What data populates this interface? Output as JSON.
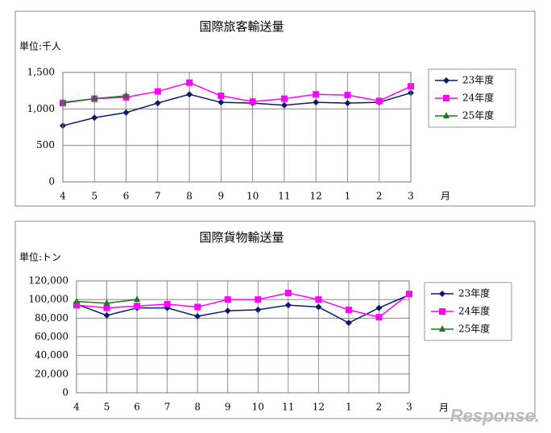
{
  "chart_data": [
    {
      "type": "line",
      "title": "国際旅客輸送量",
      "unit_label": "単位:千人",
      "x_unit": "月",
      "categories": [
        "4",
        "5",
        "6",
        "7",
        "8",
        "9",
        "10",
        "11",
        "12",
        "1",
        "2",
        "3"
      ],
      "ylim": [
        0,
        1500
      ],
      "yticks": [
        0,
        500,
        {
          "value": 1000,
          "label": "1,000"
        },
        {
          "value": 1500,
          "label": "1,500"
        }
      ],
      "grid": true,
      "legend": "right",
      "series": [
        {
          "name": "23年度",
          "color": "#0a1a6e",
          "marker": "diamond",
          "values": [
            770,
            880,
            950,
            1080,
            1200,
            1090,
            1080,
            1050,
            1090,
            1080,
            1090,
            1220
          ]
        },
        {
          "name": "24年度",
          "color": "#ff00ff",
          "marker": "square",
          "values": [
            1080,
            1140,
            1160,
            1240,
            1360,
            1180,
            1100,
            1140,
            1200,
            1190,
            1110,
            1310
          ]
        },
        {
          "name": "25年度",
          "color": "#1a7a1a",
          "marker": "triangle",
          "values": [
            1090,
            1140,
            1180,
            null,
            null,
            null,
            null,
            null,
            null,
            null,
            null,
            null
          ]
        }
      ]
    },
    {
      "type": "line",
      "title": "国際貨物輸送量",
      "unit_label": "単位:トン",
      "x_unit": "月",
      "categories": [
        "4",
        "5",
        "6",
        "7",
        "8",
        "9",
        "10",
        "11",
        "12",
        "1",
        "2",
        "3"
      ],
      "ylim": [
        0,
        120000
      ],
      "yticks": [
        0,
        {
          "value": 20000,
          "label": "20,000"
        },
        {
          "value": 40000,
          "label": "40,000"
        },
        {
          "value": 60000,
          "label": "60,000"
        },
        {
          "value": 80000,
          "label": "80,000"
        },
        {
          "value": 100000,
          "label": "100,000"
        },
        {
          "value": 120000,
          "label": "120,000"
        }
      ],
      "grid": true,
      "legend": "right",
      "series": [
        {
          "name": "23年度",
          "color": "#0a1a6e",
          "marker": "diamond",
          "values": [
            95000,
            83000,
            91000,
            91000,
            82000,
            88000,
            89000,
            94000,
            92000,
            75000,
            91000,
            105000
          ]
        },
        {
          "name": "24年度",
          "color": "#ff00ff",
          "marker": "square",
          "values": [
            94000,
            91000,
            93000,
            95000,
            92000,
            100000,
            100000,
            107000,
            100000,
            89000,
            81000,
            106000
          ]
        },
        {
          "name": "25年度",
          "color": "#1a7a1a",
          "marker": "triangle",
          "values": [
            98000,
            96000,
            100000,
            null,
            null,
            null,
            null,
            null,
            null,
            null,
            null,
            null
          ]
        }
      ]
    }
  ],
  "watermark": "Response."
}
